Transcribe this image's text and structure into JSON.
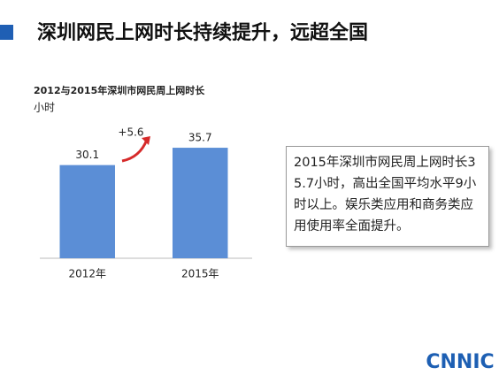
{
  "header": {
    "title": "深圳网民上网时长持续提升，远超全国"
  },
  "chart_data": {
    "type": "bar",
    "title": "2012与2015年深圳市网民周上网时长",
    "y_unit": "小时",
    "categories": [
      "2012年",
      "2015年"
    ],
    "values": [
      30.1,
      35.7
    ],
    "color": "#5b8ed6",
    "ylim": [
      0,
      40
    ],
    "annotation": "+5.6"
  },
  "callout": {
    "text": "2015年深圳市网民周上网时长35.7小时，高出全国平均水平9小时以上。娱乐类应用和商务类应用使用率全面提升。"
  },
  "logo": {
    "text": "CNNIC"
  }
}
